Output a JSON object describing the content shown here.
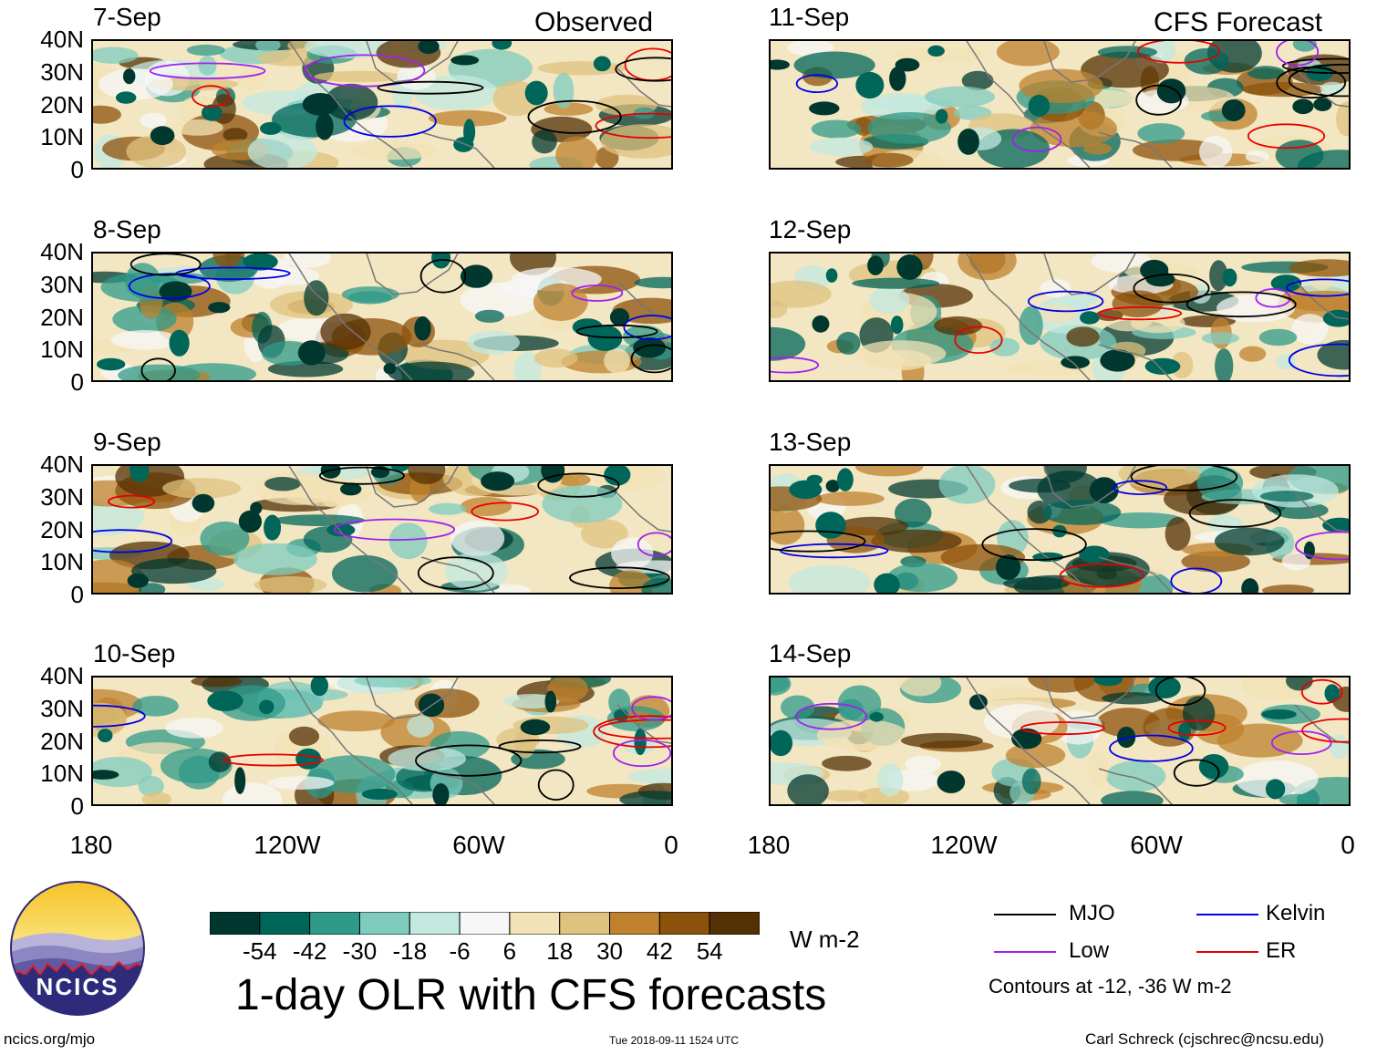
{
  "title": "1-day OLR with CFS forecasts",
  "columns": {
    "observed": "Observed",
    "forecast": "CFS Forecast"
  },
  "panels": {
    "observed": [
      "7-Sep",
      "8-Sep",
      "9-Sep",
      "10-Sep"
    ],
    "forecast": [
      "11-Sep",
      "12-Sep",
      "13-Sep",
      "14-Sep"
    ]
  },
  "lat_ticks": [
    "40N",
    "30N",
    "20N",
    "10N",
    "0"
  ],
  "lon_ticks": [
    "180",
    "120W",
    "60W",
    "0"
  ],
  "colorbar": {
    "units": "W m-2",
    "ticks": [
      "-54",
      "-42",
      "-30",
      "-18",
      "-6",
      "6",
      "18",
      "30",
      "42",
      "54"
    ],
    "colors": [
      "#00382f",
      "#006659",
      "#2f998a",
      "#7fccbf",
      "#c2e8e0",
      "#f7f7f7",
      "#f2e2b5",
      "#dfc27d",
      "#bf812d",
      "#8c510a",
      "#543005"
    ]
  },
  "legend": {
    "items": [
      {
        "label": "MJO",
        "color": "#000000"
      },
      {
        "label": "Kelvin",
        "color": "#0000e6"
      },
      {
        "label": "Low",
        "color": "#a020f0"
      },
      {
        "label": "ER",
        "color": "#e60000"
      }
    ],
    "note": "Contours at -12, -36 W m-2"
  },
  "logo": {
    "text": "NCICS"
  },
  "footer": {
    "url": "ncics.org/mjo",
    "timestamp": "Tue 2018-09-11 1524 UTC",
    "credit": "Carl Schreck (cjschrec@ncsu.edu)"
  }
}
